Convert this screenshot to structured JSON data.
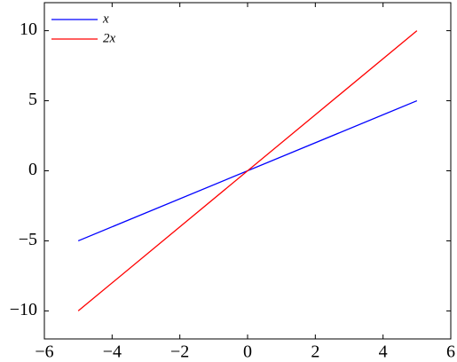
{
  "chart_data": {
    "type": "line",
    "x": [
      -5,
      5
    ],
    "series": [
      {
        "name": "x",
        "color": "#0000ff",
        "values": [
          -5,
          5
        ]
      },
      {
        "name": "2x",
        "color": "#ff0000",
        "values": [
          -10,
          10
        ]
      }
    ],
    "xlim": [
      -6,
      6
    ],
    "ylim": [
      -12,
      12
    ],
    "xticks": [
      {
        "value": -6,
        "label": "−6"
      },
      {
        "value": -4,
        "label": "−4"
      },
      {
        "value": -2,
        "label": "−2"
      },
      0,
      2,
      4,
      6
    ],
    "yticks": [
      {
        "value": -10,
        "label": "−10"
      },
      {
        "value": -5,
        "label": "−5"
      },
      0,
      5,
      10
    ],
    "legend": "upper-left"
  }
}
